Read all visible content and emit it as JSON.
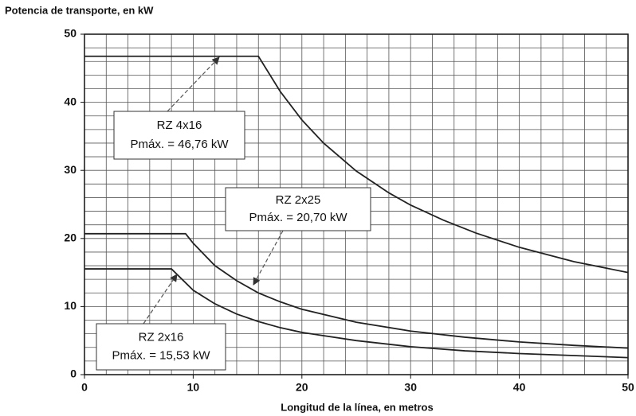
{
  "chart_data": {
    "type": "line",
    "title": "Potencia de transporte, en kW",
    "x_label": "Longitud de la línea, en metros",
    "xlim": [
      0,
      50
    ],
    "ylim": [
      0,
      50
    ],
    "xticks": [
      0,
      10,
      20,
      30,
      40,
      50
    ],
    "yticks": [
      0,
      10,
      20,
      30,
      40,
      50
    ],
    "grid": true,
    "grid_step": 2,
    "series": [
      {
        "color": "#222",
        "x": [
          0,
          16,
          18,
          20,
          22,
          25,
          28,
          30,
          33,
          36,
          40,
          45,
          50
        ],
        "values": [
          46.76,
          46.76,
          41.6,
          37.4,
          34.0,
          29.9,
          26.7,
          24.9,
          22.7,
          20.8,
          18.7,
          16.6,
          15.0
        ]
      },
      {
        "color": "#222",
        "x": [
          0,
          9.3,
          10,
          12,
          14,
          16,
          18,
          20,
          25,
          30,
          35,
          40,
          45,
          50
        ],
        "values": [
          20.7,
          20.7,
          19.3,
          16.0,
          13.8,
          12.0,
          10.7,
          9.6,
          7.7,
          6.4,
          5.5,
          4.8,
          4.3,
          3.9
        ]
      },
      {
        "color": "#222",
        "x": [
          0,
          8,
          10,
          12,
          14,
          16,
          18,
          20,
          25,
          30,
          35,
          40,
          45,
          50
        ],
        "values": [
          15.53,
          15.53,
          12.4,
          10.4,
          8.9,
          7.8,
          6.9,
          6.2,
          5.0,
          4.1,
          3.5,
          3.1,
          2.8,
          2.5
        ]
      }
    ],
    "annotations": [
      {
        "lines": [
          "RZ  4x16",
          "Pmáx. = 46,76 kW"
        ]
      },
      {
        "lines": [
          "RZ  2x25",
          "Pmáx. = 20,70 kW"
        ]
      },
      {
        "lines": [
          "RZ  2x16",
          "Pmáx. = 15,53 kW"
        ]
      }
    ]
  }
}
